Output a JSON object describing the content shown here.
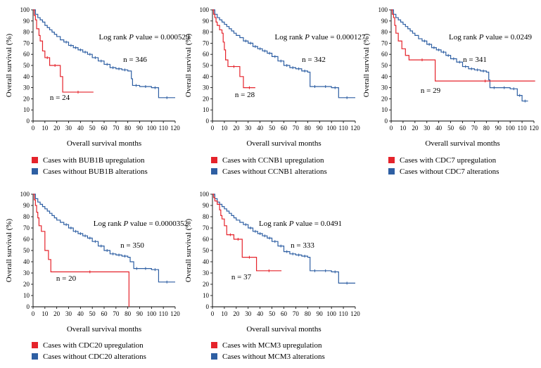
{
  "chart_data": [
    {
      "type": "line",
      "panel": "BUB1B",
      "xlabel": "Overall survival months",
      "ylabel": "Overall survival (%)",
      "xlim": [
        0,
        120
      ],
      "ylim": [
        0,
        100
      ],
      "xticks": [
        0,
        10,
        20,
        30,
        40,
        50,
        60,
        70,
        80,
        90,
        100,
        110,
        120
      ],
      "yticks": [
        0,
        10,
        20,
        30,
        40,
        50,
        60,
        70,
        80,
        90,
        100
      ],
      "annotation": {
        "prefix": "Log rank ",
        "p": "P",
        "suffix": " value = 0.000529"
      },
      "series": [
        {
          "name": "Cases with BUB1B upregulation",
          "color": "#e5232b",
          "n_label": "n = 24",
          "x": [
            0,
            1,
            2,
            3,
            5,
            6,
            8,
            10,
            14,
            23,
            25,
            51
          ],
          "y": [
            100,
            95,
            91,
            83,
            77,
            72,
            63,
            57,
            50,
            40,
            26,
            26
          ]
        },
        {
          "name": "Cases without BUB1B alterations",
          "color": "#2e5fa3",
          "n_label": "n = 346",
          "x": [
            0,
            2,
            4,
            6,
            8,
            10,
            12,
            14,
            16,
            18,
            20,
            23,
            26,
            30,
            34,
            38,
            42,
            46,
            50,
            55,
            60,
            65,
            70,
            75,
            80,
            83,
            84,
            90,
            100,
            106,
            120
          ],
          "y": [
            100,
            96,
            93,
            91,
            89,
            86,
            84,
            82,
            80,
            78,
            76,
            73,
            71,
            68,
            66,
            64,
            62,
            60,
            57,
            54,
            51,
            48,
            47,
            46,
            45,
            38,
            32,
            31,
            30,
            21,
            21
          ]
        }
      ]
    },
    {
      "type": "line",
      "panel": "CCNB1",
      "xlabel": "Overall survival months",
      "ylabel": "Overall survival (%)",
      "xlim": [
        0,
        120
      ],
      "ylim": [
        0,
        100
      ],
      "xticks": [
        0,
        10,
        20,
        30,
        40,
        50,
        60,
        70,
        80,
        90,
        100,
        110,
        120
      ],
      "yticks": [
        0,
        10,
        20,
        30,
        40,
        50,
        60,
        70,
        80,
        90,
        100
      ],
      "annotation": {
        "prefix": "Log rank ",
        "p": "P",
        "suffix": " value = 0.000127"
      },
      "series": [
        {
          "name": "Cases with CCNB1 upregulation",
          "color": "#e5232b",
          "n_label": "n = 28",
          "x": [
            0,
            1,
            2,
            3,
            4,
            6,
            8,
            9,
            10,
            11,
            13,
            23,
            26,
            36
          ],
          "y": [
            100,
            96,
            93,
            89,
            86,
            82,
            79,
            71,
            64,
            55,
            49,
            40,
            30,
            30
          ]
        },
        {
          "name": "Cases without CCNB1 alterations",
          "color": "#2e5fa3",
          "n_label": "n = 342",
          "x": [
            0,
            2,
            4,
            6,
            8,
            10,
            12,
            14,
            16,
            18,
            20,
            23,
            26,
            30,
            34,
            38,
            42,
            46,
            50,
            55,
            60,
            65,
            70,
            75,
            80,
            82,
            90,
            100,
            106,
            120
          ],
          "y": [
            100,
            96,
            93,
            91,
            89,
            87,
            85,
            83,
            81,
            79,
            77,
            75,
            72,
            70,
            67,
            65,
            63,
            61,
            58,
            54,
            50,
            48,
            47,
            45,
            44,
            31,
            31,
            30,
            21,
            21
          ]
        }
      ]
    },
    {
      "type": "line",
      "panel": "CDC7",
      "xlabel": "Overall survival months",
      "ylabel": "Overall survival (%)",
      "xlim": [
        0,
        120
      ],
      "ylim": [
        0,
        100
      ],
      "xticks": [
        0,
        10,
        20,
        30,
        40,
        50,
        60,
        70,
        80,
        90,
        100,
        110,
        120
      ],
      "yticks": [
        0,
        10,
        20,
        30,
        40,
        50,
        60,
        70,
        80,
        90,
        100
      ],
      "annotation": {
        "prefix": "Log rank ",
        "p": "P",
        "suffix": " value = 0.0249"
      },
      "series": [
        {
          "name": "Cases with CDC7 upregulation",
          "color": "#e5232b",
          "n_label": "n = 29",
          "x": [
            0,
            1,
            2,
            3,
            4,
            6,
            9,
            12,
            15,
            37,
            121
          ],
          "y": [
            100,
            96,
            93,
            86,
            79,
            72,
            65,
            59,
            55,
            36,
            36
          ]
        },
        {
          "name": "Cases without CDC7 alterations",
          "color": "#2e5fa3",
          "n_label": "n = 341",
          "x": [
            0,
            2,
            4,
            6,
            8,
            10,
            12,
            14,
            16,
            18,
            20,
            23,
            26,
            30,
            34,
            38,
            42,
            46,
            50,
            55,
            60,
            65,
            70,
            75,
            80,
            82,
            83,
            90,
            100,
            106,
            110,
            115
          ],
          "y": [
            100,
            96,
            93,
            91,
            89,
            87,
            85,
            83,
            81,
            79,
            77,
            74,
            72,
            69,
            66,
            64,
            62,
            59,
            56,
            53,
            49,
            47,
            46,
            45,
            44,
            37,
            30,
            30,
            29,
            23,
            18,
            18
          ]
        }
      ]
    },
    {
      "type": "line",
      "panel": "CDC20",
      "xlabel": "Overall survival months",
      "ylabel": "Overall survival (%)",
      "xlim": [
        0,
        120
      ],
      "ylim": [
        0,
        100
      ],
      "xticks": [
        0,
        10,
        20,
        30,
        40,
        50,
        60,
        70,
        80,
        90,
        100,
        110,
        120
      ],
      "yticks": [
        0,
        10,
        20,
        30,
        40,
        50,
        60,
        70,
        80,
        90,
        100
      ],
      "annotation": {
        "prefix": "Log rank ",
        "p": "P",
        "suffix": " value = 0.0000352"
      },
      "series": [
        {
          "name": "Cases with CDC20 upregulation",
          "color": "#e5232b",
          "n_label": "n = 20",
          "x": [
            0,
            1,
            2,
            3,
            4,
            5,
            7,
            10,
            13,
            15,
            81,
            81
          ],
          "y": [
            100,
            95,
            90,
            84,
            79,
            72,
            67,
            50,
            42,
            31,
            31,
            0
          ]
        },
        {
          "name": "Cases without CDC20 alterations",
          "color": "#2e5fa3",
          "n_label": "n = 350",
          "x": [
            0,
            2,
            4,
            6,
            8,
            10,
            12,
            14,
            16,
            18,
            20,
            23,
            26,
            30,
            34,
            38,
            42,
            46,
            50,
            55,
            60,
            65,
            70,
            75,
            80,
            82,
            85,
            90,
            100,
            106,
            120
          ],
          "y": [
            100,
            96,
            93,
            91,
            89,
            87,
            85,
            83,
            81,
            79,
            77,
            75,
            73,
            70,
            67,
            65,
            63,
            61,
            58,
            54,
            50,
            47,
            46,
            45,
            44,
            40,
            34,
            34,
            33,
            22,
            22
          ]
        }
      ]
    },
    {
      "type": "line",
      "panel": "MCM3",
      "xlabel": "Overall survival months",
      "ylabel": "Overall survival (%)",
      "xlim": [
        0,
        120
      ],
      "ylim": [
        0,
        100
      ],
      "xticks": [
        0,
        10,
        20,
        30,
        40,
        50,
        60,
        70,
        80,
        90,
        100,
        110,
        120
      ],
      "yticks": [
        0,
        10,
        20,
        30,
        40,
        50,
        60,
        70,
        80,
        90,
        100
      ],
      "annotation": {
        "prefix": "Log rank ",
        "p": "P",
        "suffix": " value = 0.0491"
      },
      "series": [
        {
          "name": "Cases with MCM3 upregulation",
          "color": "#e5232b",
          "n_label": "n = 37",
          "x": [
            0,
            1,
            2,
            4,
            6,
            7,
            8,
            10,
            12,
            18,
            25,
            37,
            58
          ],
          "y": [
            100,
            97,
            94,
            91,
            86,
            81,
            78,
            72,
            64,
            60,
            44,
            32,
            32
          ]
        },
        {
          "name": "Cases without MCM3 alterations",
          "color": "#2e5fa3",
          "n_label": "n = 333",
          "x": [
            0,
            2,
            4,
            6,
            8,
            10,
            12,
            14,
            16,
            18,
            20,
            23,
            26,
            30,
            34,
            38,
            42,
            46,
            50,
            55,
            60,
            65,
            70,
            75,
            80,
            82,
            90,
            100,
            106,
            120
          ],
          "y": [
            100,
            96,
            93,
            91,
            89,
            87,
            85,
            83,
            81,
            79,
            77,
            75,
            73,
            70,
            67,
            65,
            63,
            61,
            58,
            54,
            49,
            47,
            46,
            45,
            44,
            32,
            32,
            31,
            21,
            21
          ]
        }
      ]
    }
  ]
}
